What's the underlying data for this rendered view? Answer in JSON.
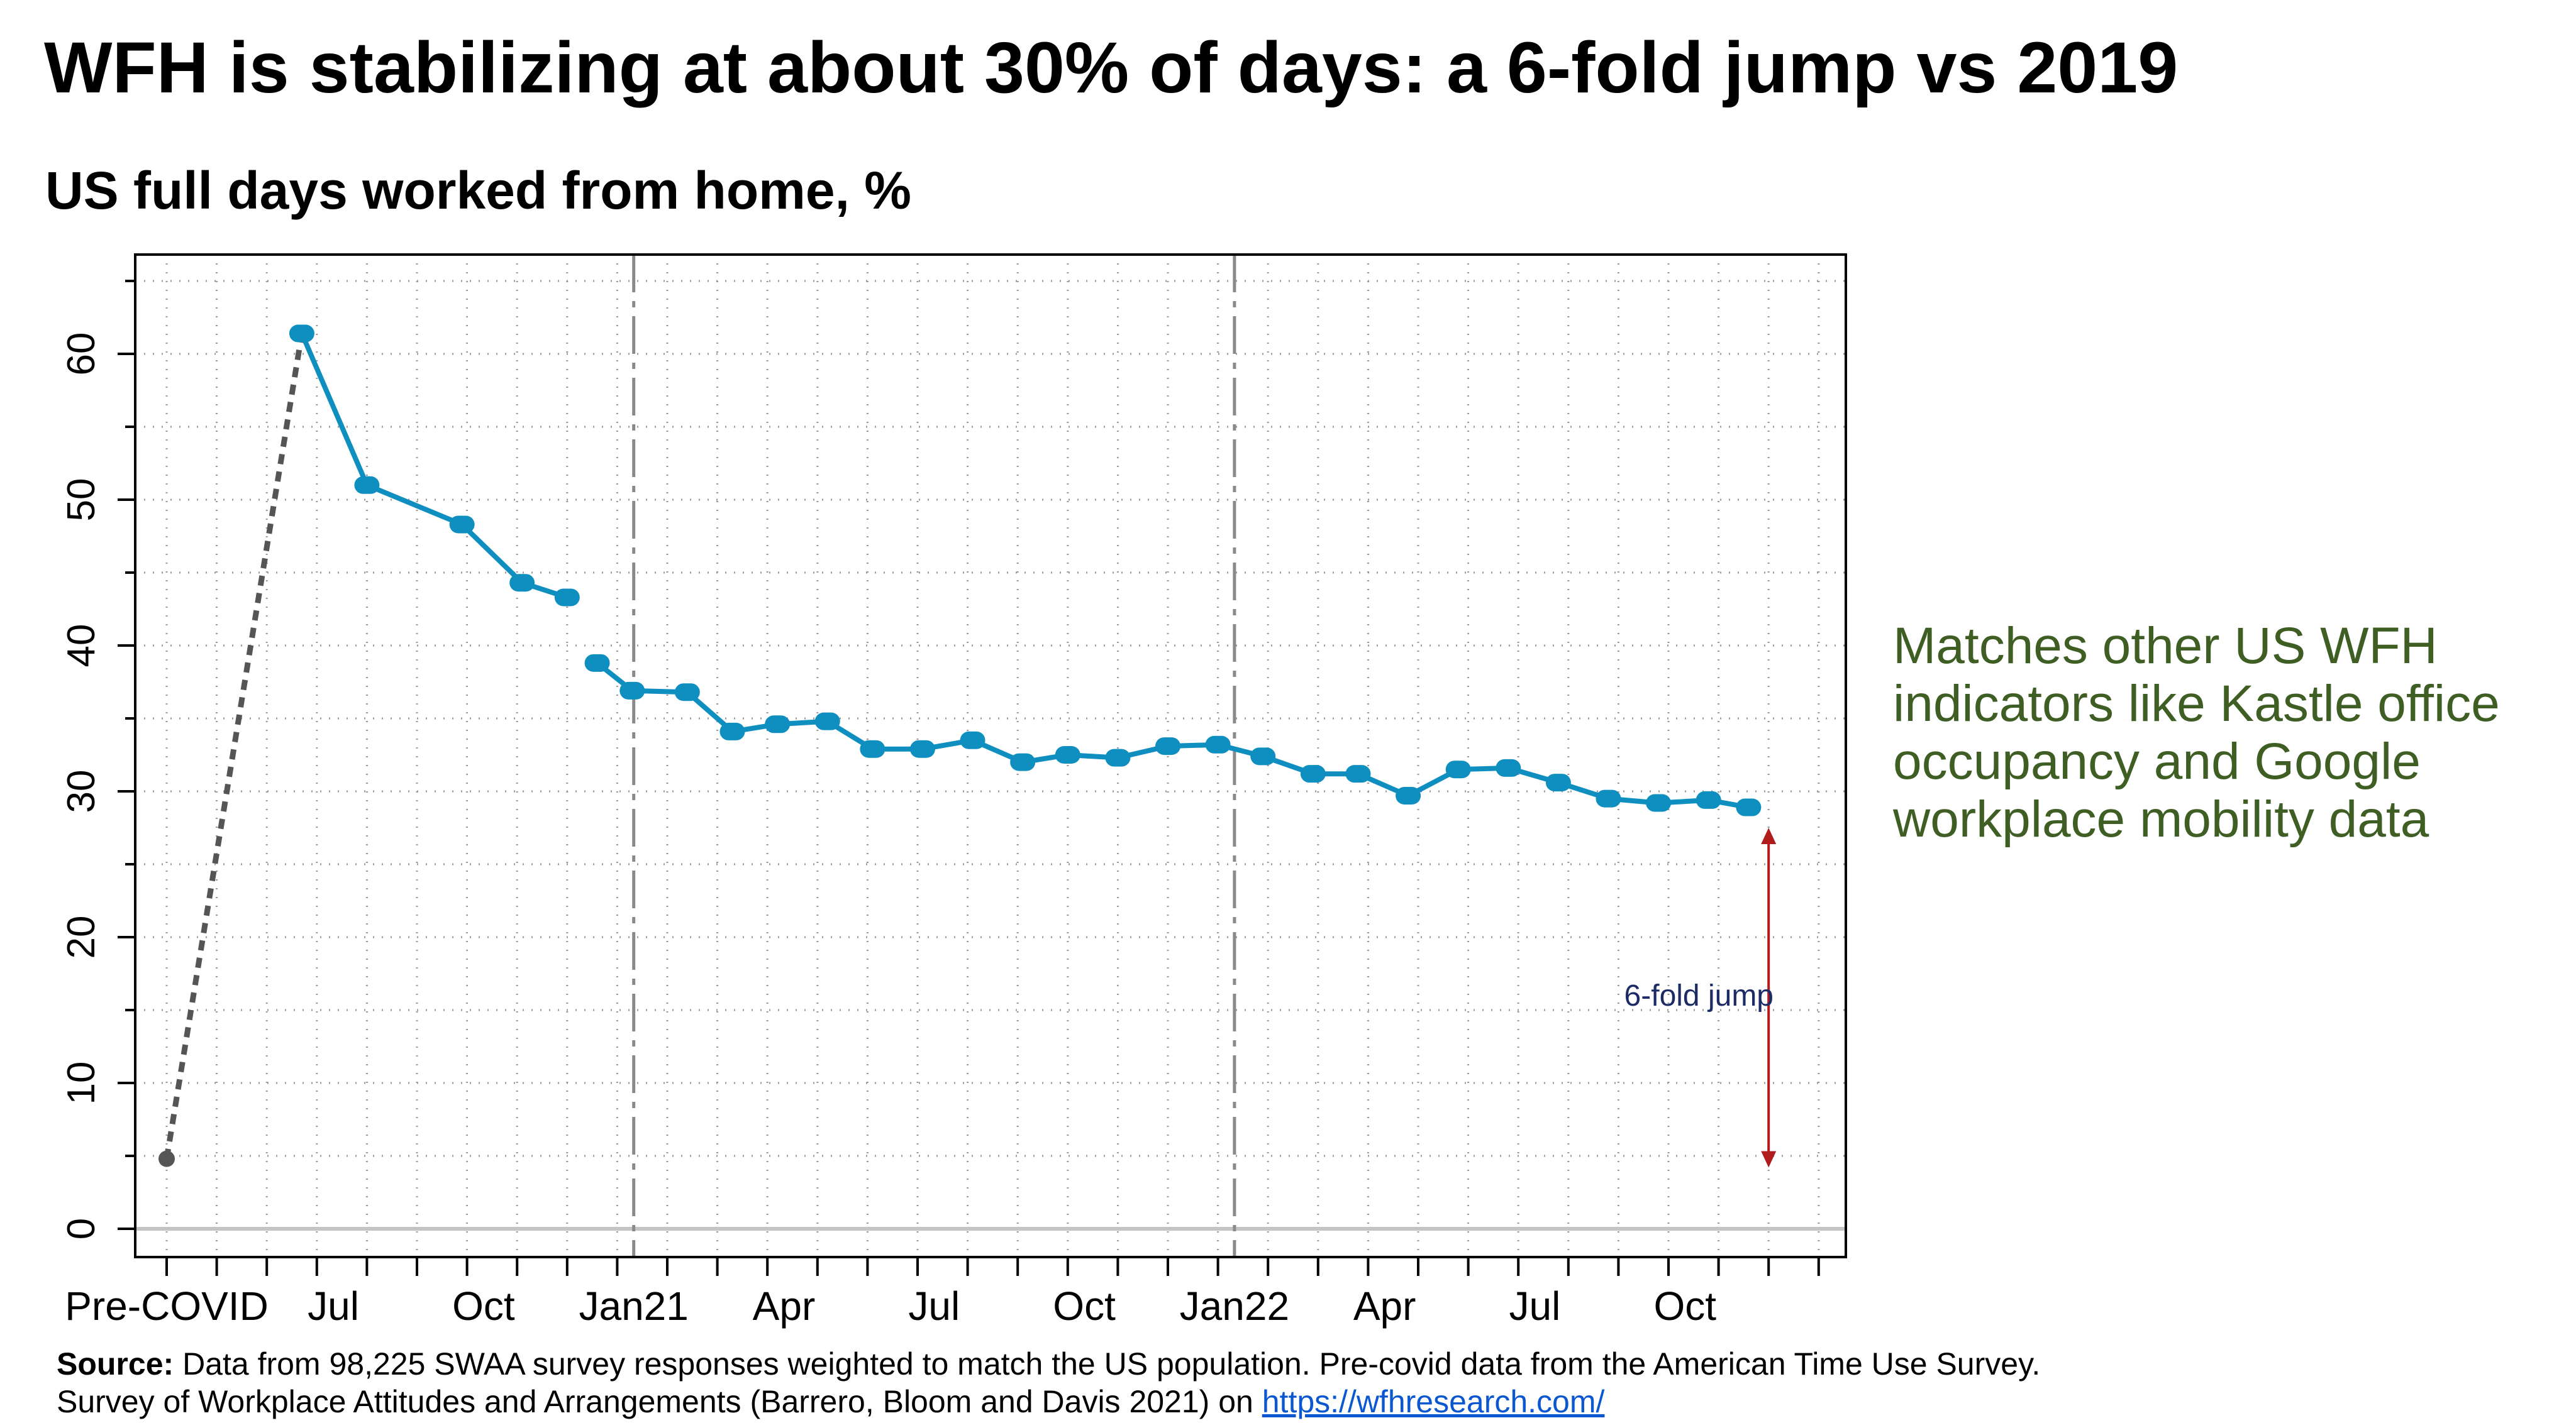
{
  "title": "WFH is stabilizing at about 30% of days: a 6-fold jump vs 2019",
  "subtitle": "US full days worked from home, %",
  "side_note": "Matches other US WFH indicators like Kastle office occupancy and Google workplace mobility data",
  "source": {
    "label": "Source:",
    "line1": "Data from 98,225 SWAA survey responses weighted to match the US population. Pre-covid data from the American Time Use Survey.",
    "line2_text": "Survey of Workplace Attitudes and Arrangements (Barrero, Bloom and Davis 2021) on",
    "link_text": "https://wfhresearch.com/"
  },
  "colors": {
    "series": "#0f8fc0",
    "precovid_line": "#555555",
    "arrow": "#b01c1c",
    "annotation": "#1c2a66",
    "side_note": "#3e5e24"
  },
  "chart_data": {
    "type": "line",
    "xlabel": "",
    "ylabel": "",
    "ylim": [
      0,
      66
    ],
    "y_ticks": [
      0,
      10,
      20,
      30,
      40,
      50,
      60
    ],
    "grid": true,
    "x_tick_labels": [
      {
        "label": "Pre-COVID",
        "x": 0
      },
      {
        "label": "Jul",
        "x": 3.33
      },
      {
        "label": "Oct",
        "x": 6.33
      },
      {
        "label": "Jan21",
        "x": 9.33
      },
      {
        "label": "Apr",
        "x": 12.33
      },
      {
        "label": "Jul",
        "x": 15.33
      },
      {
        "label": "Oct",
        "x": 18.33
      },
      {
        "label": "Jan22",
        "x": 21.33
      },
      {
        "label": "Apr",
        "x": 24.33
      },
      {
        "label": "Jul",
        "x": 27.33
      },
      {
        "label": "Oct",
        "x": 30.33
      }
    ],
    "year_dividers": [
      9.33,
      21.33
    ],
    "precovid": {
      "x": 0,
      "y": 4.8
    },
    "series": [
      {
        "name": "",
        "segment": 1,
        "points": [
          {
            "x": 2.7,
            "y": 61.4
          },
          {
            "x": 4.0,
            "y": 51.0
          },
          {
            "x": 5.9,
            "y": 48.3
          },
          {
            "x": 7.1,
            "y": 44.3
          },
          {
            "x": 8.0,
            "y": 43.3
          }
        ]
      },
      {
        "name": "",
        "segment": 2,
        "points": [
          {
            "x": 8.6,
            "y": 38.8
          },
          {
            "x": 9.3,
            "y": 36.9
          },
          {
            "x": 10.4,
            "y": 36.8
          },
          {
            "x": 11.3,
            "y": 34.1
          },
          {
            "x": 12.2,
            "y": 34.6
          },
          {
            "x": 13.2,
            "y": 34.8
          },
          {
            "x": 14.1,
            "y": 32.9
          },
          {
            "x": 15.1,
            "y": 32.9
          },
          {
            "x": 16.1,
            "y": 33.5
          },
          {
            "x": 17.1,
            "y": 32.0
          },
          {
            "x": 18.0,
            "y": 32.5
          },
          {
            "x": 19.0,
            "y": 32.3
          },
          {
            "x": 20.0,
            "y": 33.1
          },
          {
            "x": 21.0,
            "y": 33.2
          },
          {
            "x": 21.9,
            "y": 32.4
          },
          {
            "x": 22.9,
            "y": 31.2
          },
          {
            "x": 23.8,
            "y": 31.2
          },
          {
            "x": 24.8,
            "y": 29.7
          },
          {
            "x": 25.8,
            "y": 31.5
          },
          {
            "x": 26.8,
            "y": 31.6
          },
          {
            "x": 27.8,
            "y": 30.6
          },
          {
            "x": 28.8,
            "y": 29.5
          },
          {
            "x": 29.8,
            "y": 29.2
          },
          {
            "x": 30.8,
            "y": 29.4
          },
          {
            "x": 31.6,
            "y": 28.9
          }
        ]
      }
    ],
    "annotation": {
      "text": "6-fold jump",
      "arrow_x": 32.0,
      "arrow_y_from": 27.5,
      "arrow_y_to": 4.2
    }
  }
}
